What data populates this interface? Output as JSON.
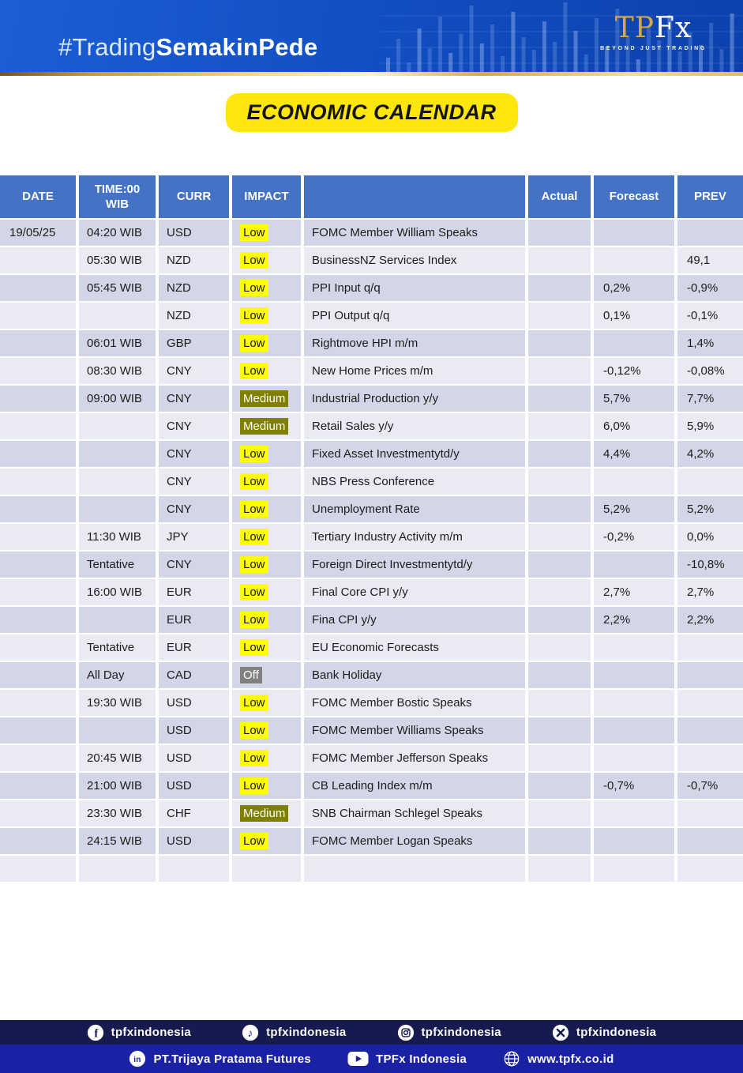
{
  "banner": {
    "hashtag_light": "#Trading",
    "hashtag_bold": "SemakinPede",
    "logo_tp": "TP",
    "logo_fx": "Fx",
    "logo_tagline": "BEYOND JUST TRADING"
  },
  "title": "ECONOMIC CALENDAR",
  "impact_colors": {
    "low": "#FFFF00",
    "medium": "#7F7F00",
    "off": "#808080"
  },
  "table": {
    "headers": [
      "DATE",
      "TIME:00 WIB",
      "CURR",
      "IMPACT",
      "",
      "Actual",
      "Forecast",
      "PREV"
    ],
    "rows": [
      {
        "date": "19/05/25",
        "time": "04:20 WIB",
        "curr": "USD",
        "impact": {
          "label": "Low",
          "level": "low"
        },
        "event": "FOMC Member William Speaks",
        "actual": "",
        "forecast": "",
        "prev": ""
      },
      {
        "date": "",
        "time": "05:30 WIB",
        "curr": "NZD",
        "impact": {
          "label": "Low",
          "level": "low"
        },
        "event": "BusinessNZ Services Index",
        "actual": "",
        "forecast": "",
        "prev": "49,1"
      },
      {
        "date": "",
        "time": "05:45 WIB",
        "curr": "NZD",
        "impact": {
          "label": "Low",
          "level": "low"
        },
        "event": "PPI Input q/q",
        "actual": "",
        "forecast": "0,2%",
        "prev": "-0,9%"
      },
      {
        "date": "",
        "time": "",
        "curr": "NZD",
        "impact": {
          "label": "Low",
          "level": "low"
        },
        "event": "PPI Output q/q",
        "actual": "",
        "forecast": "0,1%",
        "prev": "-0,1%"
      },
      {
        "date": "",
        "time": "06:01 WIB",
        "curr": "GBP",
        "impact": {
          "label": "Low",
          "level": "low"
        },
        "event": "Rightmove HPI m/m",
        "actual": "",
        "forecast": "",
        "prev": "1,4%"
      },
      {
        "date": "",
        "time": "08:30 WIB",
        "curr": "CNY",
        "impact": {
          "label": "Low",
          "level": "low"
        },
        "event": "New Home Prices m/m",
        "actual": "",
        "forecast": "-0,12%",
        "prev": "-0,08%"
      },
      {
        "date": "",
        "time": "09:00 WIB",
        "curr": "CNY",
        "impact": {
          "label": "Medium",
          "level": "medium"
        },
        "event": "Industrial Production y/y",
        "actual": "",
        "forecast": "5,7%",
        "prev": "7,7%"
      },
      {
        "date": "",
        "time": "",
        "curr": "CNY",
        "impact": {
          "label": "Medium",
          "level": "medium"
        },
        "event": "Retail Sales y/y",
        "actual": "",
        "forecast": "6,0%",
        "prev": "5,9%"
      },
      {
        "date": "",
        "time": "",
        "curr": "CNY",
        "impact": {
          "label": "Low",
          "level": "low"
        },
        "event": "Fixed Asset Investmentytd/y",
        "actual": "",
        "forecast": "4,4%",
        "prev": "4,2%"
      },
      {
        "date": "",
        "time": "",
        "curr": "CNY",
        "impact": {
          "label": "Low",
          "level": "low"
        },
        "event": "NBS Press Conference",
        "actual": "",
        "forecast": "",
        "prev": ""
      },
      {
        "date": "",
        "time": "",
        "curr": "CNY",
        "impact": {
          "label": "Low",
          "level": "low"
        },
        "event": "Unemployment Rate",
        "actual": "",
        "forecast": "5,2%",
        "prev": "5,2%"
      },
      {
        "date": "",
        "time": "11:30 WIB",
        "curr": "JPY",
        "impact": {
          "label": "Low",
          "level": "low"
        },
        "event": "Tertiary Industry Activity m/m",
        "actual": "",
        "forecast": "-0,2%",
        "prev": "0,0%"
      },
      {
        "date": "",
        "time": "Tentative",
        "curr": "CNY",
        "impact": {
          "label": "Low",
          "level": "low"
        },
        "event": "Foreign Direct Investmentytd/y",
        "actual": "",
        "forecast": "",
        "prev": "-10,8%"
      },
      {
        "date": "",
        "time": "16:00 WIB",
        "curr": "EUR",
        "impact": {
          "label": "Low",
          "level": "low"
        },
        "event": "Final Core CPI y/y",
        "actual": "",
        "forecast": "2,7%",
        "prev": "2,7%"
      },
      {
        "date": "",
        "time": "",
        "curr": "EUR",
        "impact": {
          "label": "Low",
          "level": "low"
        },
        "event": "Fina CPI y/y",
        "actual": "",
        "forecast": "2,2%",
        "prev": "2,2%"
      },
      {
        "date": "",
        "time": "Tentative",
        "curr": "EUR",
        "impact": {
          "label": "Low",
          "level": "low"
        },
        "event": "EU Economic Forecasts",
        "actual": "",
        "forecast": "",
        "prev": ""
      },
      {
        "date": "",
        "time": "All Day",
        "curr": "CAD",
        "impact": {
          "label": "Off",
          "level": "off"
        },
        "event": "Bank Holiday",
        "actual": "",
        "forecast": "",
        "prev": ""
      },
      {
        "date": "",
        "time": "19:30 WIB",
        "curr": "USD",
        "impact": {
          "label": "Low",
          "level": "low"
        },
        "event": "FOMC Member Bostic Speaks",
        "actual": "",
        "forecast": "",
        "prev": ""
      },
      {
        "date": "",
        "time": "",
        "curr": "USD",
        "impact": {
          "label": "Low",
          "level": "low"
        },
        "event": "FOMC Member Williams Speaks",
        "actual": "",
        "forecast": "",
        "prev": ""
      },
      {
        "date": "",
        "time": "20:45 WIB",
        "curr": "USD",
        "impact": {
          "label": "Low",
          "level": "low"
        },
        "event": "FOMC Member Jefferson Speaks",
        "actual": "",
        "forecast": "",
        "prev": ""
      },
      {
        "date": "",
        "time": "21:00 WIB",
        "curr": "USD",
        "impact": {
          "label": "Low",
          "level": "low"
        },
        "event": "CB Leading Index m/m",
        "actual": "",
        "forecast": "-0,7%",
        "prev": "-0,7%"
      },
      {
        "date": "",
        "time": "23:30 WIB",
        "curr": "CHF",
        "impact": {
          "label": "Medium",
          "level": "medium"
        },
        "event": "SNB Chairman Schlegel Speaks",
        "actual": "",
        "forecast": "",
        "prev": ""
      },
      {
        "date": "",
        "time": "24:15 WIB",
        "curr": "USD",
        "impact": {
          "label": "Low",
          "level": "low"
        },
        "event": "FOMC Member Logan Speaks",
        "actual": "",
        "forecast": "",
        "prev": ""
      },
      {
        "date": "",
        "time": "",
        "curr": "",
        "impact": null,
        "event": "",
        "actual": "",
        "forecast": "",
        "prev": ""
      }
    ]
  },
  "footer": {
    "bar1": [
      {
        "icon": "facebook",
        "label": "tpfxindonesia"
      },
      {
        "icon": "tiktok",
        "label": "tpfxindonesia"
      },
      {
        "icon": "instagram",
        "label": "tpfxindonesia"
      },
      {
        "icon": "x",
        "label": "tpfxindonesia"
      }
    ],
    "bar2": [
      {
        "icon": "linkedin",
        "label": "PT.Trijaya Pratama Futures"
      },
      {
        "icon": "youtube",
        "label": "TPFx Indonesia"
      },
      {
        "icon": "globe",
        "label": "www.tpfx.co.id"
      }
    ]
  }
}
